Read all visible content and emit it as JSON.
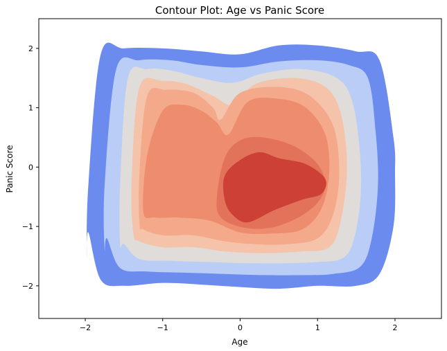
{
  "chart_data": {
    "type": "contour",
    "title": "Contour Plot: Age vs Panic Score",
    "xlabel": "Age",
    "ylabel": "Panic Score",
    "xlim": [
      -2.6,
      2.6
    ],
    "ylim": [
      -2.55,
      2.5
    ],
    "xticks": [
      -2,
      -1,
      0,
      1,
      2
    ],
    "yticks": [
      -2,
      -1,
      0,
      1,
      2
    ],
    "xtick_labels": [
      "−2",
      "−1",
      "0",
      "1",
      "2"
    ],
    "ytick_labels": [
      "−2",
      "−1",
      "0",
      "1",
      "2"
    ],
    "grid": false,
    "colormap": "coolwarm",
    "levels": [
      {
        "color": "#6b8bef",
        "x": [
          -1.98,
          -1.96,
          -1.8,
          -1.5,
          -1.0,
          -0.5,
          0.0,
          0.5,
          1.0,
          1.5,
          1.8,
          1.98,
          2.0,
          1.98,
          1.8,
          1.5,
          1.0,
          0.5,
          0.0,
          -0.5,
          -1.0,
          -1.5,
          -1.8,
          -1.96
        ],
        "y": [
          -1.5,
          -0.3,
          1.9,
          2.0,
          2.0,
          1.95,
          1.9,
          2.05,
          2.05,
          1.95,
          1.8,
          0.5,
          -0.1,
          -1.0,
          -1.8,
          -2.0,
          -2.0,
          -2.05,
          -2.02,
          -1.98,
          -1.95,
          -2.0,
          -1.9,
          -1.1
        ]
      },
      {
        "color": "#b9cdf7",
        "x": [
          -1.75,
          -1.75,
          -1.6,
          -1.3,
          -0.9,
          -0.5,
          0.0,
          0.5,
          1.0,
          1.4,
          1.65,
          1.75,
          1.78,
          1.7,
          1.55,
          1.2,
          0.8,
          0.3,
          -0.2,
          -0.7,
          -1.2,
          -1.55,
          -1.72
        ],
        "y": [
          -1.4,
          -0.3,
          1.65,
          1.8,
          1.8,
          1.72,
          1.68,
          1.78,
          1.8,
          1.72,
          1.5,
          0.6,
          -0.3,
          -1.2,
          -1.68,
          -1.8,
          -1.82,
          -1.82,
          -1.8,
          -1.78,
          -1.76,
          -1.7,
          -1.2
        ]
      },
      {
        "color": "#dfdcd9",
        "x": [
          -1.55,
          -1.55,
          -1.45,
          -1.2,
          -0.9,
          -0.5,
          -0.1,
          0.3,
          0.8,
          1.25,
          1.45,
          1.55,
          1.55,
          1.45,
          1.3,
          1.0,
          0.6,
          0.1,
          -0.4,
          -0.9,
          -1.3,
          -1.5
        ],
        "y": [
          -1.3,
          -0.3,
          1.5,
          1.65,
          1.63,
          1.5,
          1.42,
          1.58,
          1.65,
          1.5,
          1.1,
          0.2,
          -0.6,
          -1.3,
          -1.55,
          -1.6,
          -1.62,
          -1.62,
          -1.6,
          -1.58,
          -1.55,
          -1.3
        ]
      },
      {
        "color": "#f4c3a9",
        "x": [
          -1.38,
          -1.4,
          -1.3,
          -1.0,
          -0.7,
          -0.35,
          -0.1,
          0.2,
          0.7,
          1.1,
          1.3,
          1.38,
          1.3,
          1.15,
          0.8,
          0.3,
          -0.2,
          -0.6,
          -1.0,
          -1.3
        ],
        "y": [
          -1.1,
          -0.2,
          1.35,
          1.45,
          1.4,
          1.2,
          1.05,
          1.4,
          1.5,
          1.35,
          0.9,
          0.0,
          -0.9,
          -1.35,
          -1.42,
          -1.45,
          -1.42,
          -1.35,
          -1.35,
          -1.25
        ]
      },
      {
        "color": "#f3a98a",
        "x": [
          -1.3,
          -1.3,
          -1.2,
          -0.95,
          -0.6,
          -0.35,
          -0.25,
          0.0,
          0.5,
          0.9,
          1.2,
          1.28,
          1.2,
          1.0,
          0.6,
          0.2,
          -0.2,
          -0.6,
          -1.0,
          -1.25
        ],
        "y": [
          -0.95,
          -0.1,
          1.2,
          1.3,
          1.25,
          1.0,
          0.8,
          1.25,
          1.35,
          1.2,
          0.7,
          -0.1,
          -0.8,
          -1.2,
          -1.3,
          -1.3,
          -1.25,
          -1.15,
          -1.15,
          -1.05
        ]
      },
      {
        "color": "#ee8d6d",
        "x": [
          -1.25,
          -1.2,
          -1.0,
          -0.75,
          -0.5,
          -0.3,
          -0.15,
          0.1,
          0.5,
          0.85,
          1.1,
          1.15,
          1.05,
          0.8,
          0.4,
          0.0,
          -0.4,
          -0.8,
          -1.1
        ],
        "y": [
          -0.75,
          0.2,
          0.95,
          1.05,
          0.95,
          0.75,
          0.55,
          1.1,
          1.15,
          1.0,
          0.55,
          -0.1,
          -0.7,
          -1.05,
          -1.12,
          -1.1,
          -0.9,
          -0.85,
          -0.85
        ]
      },
      {
        "color": "#e2735a",
        "x": [
          -0.3,
          -0.2,
          0.0,
          0.3,
          0.7,
          1.0,
          1.1,
          1.0,
          0.75,
          0.4,
          0.05,
          -0.25
        ],
        "y": [
          -0.5,
          0.15,
          0.45,
          0.5,
          0.35,
          0.05,
          -0.3,
          -0.6,
          -0.85,
          -1.02,
          -1.02,
          -0.85
        ]
      },
      {
        "color": "#cc4036",
        "x": [
          -0.2,
          -0.2,
          0.0,
          0.25,
          0.5,
          0.85,
          1.1,
          1.05,
          0.8,
          0.45,
          0.1,
          -0.1
        ],
        "y": [
          -0.55,
          -0.15,
          0.12,
          0.25,
          0.15,
          0.05,
          -0.2,
          -0.45,
          -0.55,
          -0.72,
          -0.93,
          -0.8
        ]
      }
    ]
  }
}
